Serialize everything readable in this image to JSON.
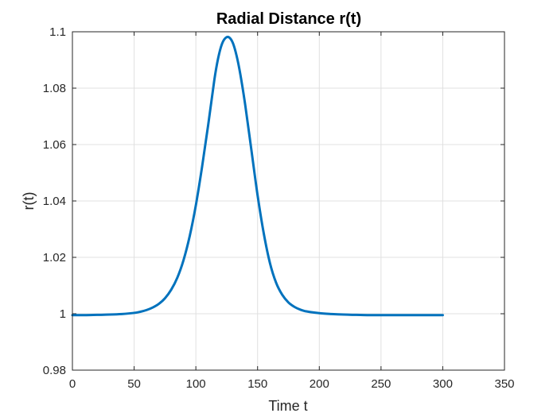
{
  "chart_data": {
    "type": "line",
    "title": "Radial Distance r(t)",
    "xlabel": "Time t",
    "ylabel": "r(t)",
    "xlim": [
      0,
      350
    ],
    "ylim": [
      0.98,
      1.1
    ],
    "xticks": [
      0,
      50,
      100,
      150,
      200,
      250,
      300,
      350
    ],
    "yticks": [
      0.98,
      1,
      1.02,
      1.04,
      1.06,
      1.08,
      1.1
    ],
    "xtick_labels": [
      "0",
      "50",
      "100",
      "150",
      "200",
      "250",
      "300",
      "350"
    ],
    "ytick_labels": [
      "0.98",
      "1",
      "1.02",
      "1.04",
      "1.06",
      "1.08",
      "1.1"
    ],
    "grid": true,
    "legend": "none",
    "series": [
      {
        "color": "#0072BD",
        "x": [
          0,
          10,
          20,
          30,
          40,
          50,
          55,
          60,
          65,
          70,
          75,
          80,
          85,
          90,
          95,
          100,
          105,
          110,
          115,
          118,
          121,
          124,
          127,
          130,
          133,
          136,
          140,
          145,
          150,
          155,
          160,
          165,
          170,
          175,
          180,
          185,
          190,
          200,
          210,
          220,
          230,
          240,
          250,
          260,
          280,
          300
        ],
        "y": [
          0.9995,
          0.9995,
          0.9996,
          0.9997,
          0.9999,
          1.0003,
          1.0007,
          1.0013,
          1.0022,
          1.0035,
          1.0055,
          1.0085,
          1.0128,
          1.019,
          1.0275,
          1.0385,
          1.052,
          1.067,
          1.083,
          1.0905,
          1.0955,
          1.0978,
          1.098,
          1.096,
          1.0915,
          1.085,
          1.074,
          1.058,
          1.042,
          1.0285,
          1.018,
          1.011,
          1.0067,
          1.004,
          1.0024,
          1.0014,
          1.0008,
          1.0002,
          0.9999,
          0.9997,
          0.9996,
          0.9995,
          0.9995,
          0.9995,
          0.9995,
          0.9995
        ]
      }
    ]
  }
}
